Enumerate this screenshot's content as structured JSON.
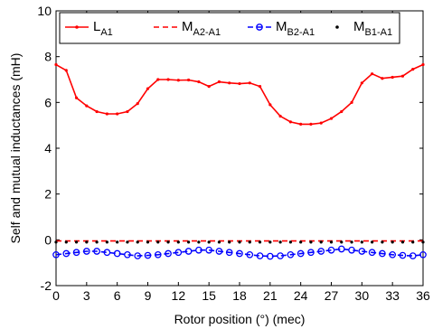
{
  "chart_data": {
    "type": "line",
    "xlabel": "Rotor position (°) (mec)",
    "ylabel": "Self and mutual inductances (mH)",
    "xlim": [
      0,
      36
    ],
    "ylim": [
      -2,
      10
    ],
    "xticks": [
      0,
      3,
      6,
      9,
      12,
      15,
      18,
      21,
      24,
      27,
      30,
      33,
      36
    ],
    "yticks": [
      -2,
      0,
      2,
      4,
      6,
      8,
      10
    ],
    "grid": false,
    "legend_position": "top",
    "series": [
      {
        "name": "L",
        "subscript": "A1",
        "color": "#ff0000",
        "line": "solid",
        "marker": "dot",
        "x": [
          0,
          1,
          2,
          3,
          4,
          5,
          6,
          7,
          8,
          9,
          10,
          11,
          12,
          13,
          14,
          15,
          16,
          17,
          18,
          19,
          20,
          21,
          22,
          23,
          24,
          25,
          26,
          27,
          28,
          29,
          30,
          31,
          32,
          33,
          34,
          35,
          36
        ],
        "values": [
          7.65,
          7.4,
          6.2,
          5.85,
          5.6,
          5.5,
          5.5,
          5.6,
          5.95,
          6.6,
          7.0,
          7.0,
          6.97,
          6.98,
          6.9,
          6.7,
          6.9,
          6.85,
          6.82,
          6.85,
          6.7,
          5.9,
          5.4,
          5.15,
          5.05,
          5.05,
          5.1,
          5.3,
          5.6,
          6.0,
          6.85,
          7.25,
          7.05,
          7.1,
          7.15,
          7.45,
          7.65
        ]
      },
      {
        "name": "M",
        "subscript": "A2-A1",
        "color": "#ff0000",
        "line": "dashed",
        "marker": "none",
        "x": [
          0,
          36
        ],
        "values": [
          -0.05,
          -0.05
        ]
      },
      {
        "name": "M",
        "subscript": "B2-A1",
        "color": "#0000ff",
        "line": "dashed",
        "marker": "circle",
        "x": [
          0,
          1,
          2,
          3,
          4,
          5,
          6,
          7,
          8,
          9,
          10,
          11,
          12,
          13,
          14,
          15,
          16,
          17,
          18,
          19,
          20,
          21,
          22,
          23,
          24,
          25,
          26,
          27,
          28,
          29,
          30,
          31,
          32,
          33,
          34,
          35,
          36
        ],
        "values": [
          -0.65,
          -0.6,
          -0.55,
          -0.5,
          -0.5,
          -0.55,
          -0.6,
          -0.65,
          -0.7,
          -0.68,
          -0.65,
          -0.6,
          -0.55,
          -0.5,
          -0.45,
          -0.45,
          -0.5,
          -0.55,
          -0.6,
          -0.65,
          -0.7,
          -0.72,
          -0.7,
          -0.65,
          -0.6,
          -0.55,
          -0.5,
          -0.45,
          -0.4,
          -0.45,
          -0.5,
          -0.55,
          -0.6,
          -0.65,
          -0.68,
          -0.7,
          -0.65
        ]
      },
      {
        "name": "M",
        "subscript": "B1-A1",
        "color": "#000000",
        "line": "none",
        "marker": "dot",
        "x": [
          0,
          1,
          2,
          3,
          4,
          5,
          6,
          7,
          8,
          9,
          10,
          11,
          12,
          13,
          14,
          15,
          16,
          17,
          18,
          19,
          20,
          21,
          22,
          23,
          24,
          25,
          26,
          27,
          28,
          29,
          30,
          31,
          32,
          33,
          34,
          35,
          36
        ],
        "values": [
          -0.1,
          -0.1,
          -0.1,
          -0.1,
          -0.1,
          -0.1,
          -0.1,
          -0.1,
          -0.1,
          -0.1,
          -0.1,
          -0.1,
          -0.1,
          -0.1,
          -0.1,
          -0.1,
          -0.1,
          -0.1,
          -0.1,
          -0.1,
          -0.1,
          -0.1,
          -0.1,
          -0.1,
          -0.1,
          -0.1,
          -0.1,
          -0.1,
          -0.1,
          -0.1,
          -0.1,
          -0.1,
          -0.1,
          -0.1,
          -0.1,
          -0.1,
          -0.1
        ]
      }
    ]
  }
}
